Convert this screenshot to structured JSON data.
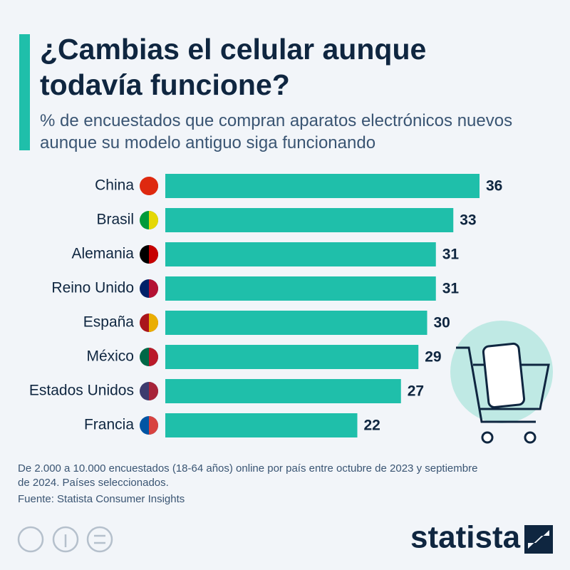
{
  "chart_data": {
    "type": "bar",
    "title": "¿Cambias el celular aunque todavía funcione?",
    "subtitle": "% de encuestados que compran aparatos electrónicos nuevos aunque su modelo antiguo siga funcionando",
    "categories": [
      "China",
      "Brasil",
      "Alemania",
      "Reino Unido",
      "España",
      "México",
      "Estados Unidos",
      "Francia"
    ],
    "values": [
      36,
      33,
      31,
      31,
      30,
      29,
      27,
      22
    ],
    "color": "#1fbfaa",
    "note": "De 2.000 a 10.000 encuestados (18-64 años) online por país entre octubre de 2023 y septiembre de 2024. Países seleccionados.",
    "source": "Fuente: Statista Consumer Insights",
    "logo": "statista"
  }
}
